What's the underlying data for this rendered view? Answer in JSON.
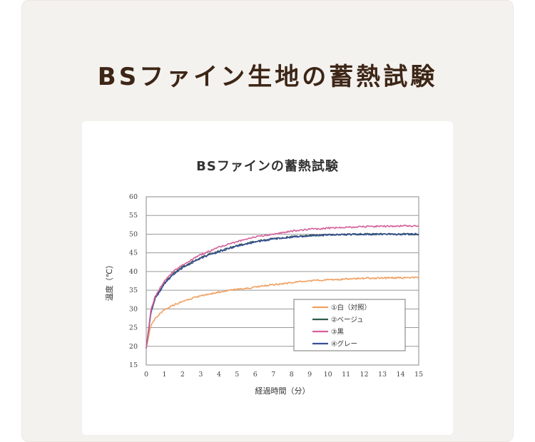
{
  "page": {
    "title": "BSファイン生地の蓄熱試験"
  },
  "colors": {
    "title_text": "#3d2616",
    "background": "#f4f2ef"
  },
  "chart_data": {
    "type": "line",
    "title": "BSファインの蓄熱試験",
    "xlabel": "経過時間（分）",
    "ylabel": "温度（℃）",
    "xlim": [
      0,
      15
    ],
    "ylim": [
      15,
      60
    ],
    "xticks": [
      0,
      1,
      2,
      3,
      4,
      5,
      6,
      7,
      8,
      9,
      10,
      11,
      12,
      13,
      14,
      15
    ],
    "yticks": [
      15,
      20,
      25,
      30,
      35,
      40,
      45,
      50,
      55,
      60
    ],
    "grid": "horizontal",
    "legend_position": "bottom-right",
    "x": [
      0,
      0.25,
      0.5,
      1,
      1.5,
      2,
      3,
      4,
      5,
      6,
      7,
      8,
      9,
      10,
      11,
      12,
      13,
      14,
      15
    ],
    "series": [
      {
        "name": "①白（対照）",
        "color": "#f0a060",
        "values": [
          19.5,
          25.5,
          27.5,
          29.8,
          31.0,
          32.0,
          33.5,
          34.5,
          35.2,
          35.8,
          36.5,
          37.0,
          37.5,
          37.8,
          38.0,
          38.2,
          38.3,
          38.3,
          38.4
        ]
      },
      {
        "name": "②ベージュ",
        "color": "#2e5e4a",
        "values": [
          19.5,
          29.0,
          33.0,
          37.0,
          39.5,
          41.2,
          43.8,
          45.5,
          47.0,
          48.0,
          48.8,
          49.3,
          49.6,
          49.8,
          49.9,
          50.0,
          50.0,
          50.0,
          50.0
        ]
      },
      {
        "name": "③黒",
        "color": "#d4609a",
        "values": [
          19.5,
          29.5,
          33.5,
          37.5,
          40.0,
          41.8,
          44.5,
          46.5,
          48.0,
          49.2,
          50.0,
          50.8,
          51.3,
          51.6,
          51.8,
          52.0,
          52.1,
          52.2,
          52.2
        ]
      },
      {
        "name": "④グレー",
        "color": "#3a4f96",
        "values": [
          19.5,
          28.8,
          32.8,
          36.8,
          39.3,
          41.0,
          43.6,
          45.3,
          46.8,
          47.9,
          48.7,
          49.2,
          49.6,
          49.8,
          49.9,
          50.0,
          50.0,
          50.0,
          50.0
        ]
      }
    ]
  }
}
